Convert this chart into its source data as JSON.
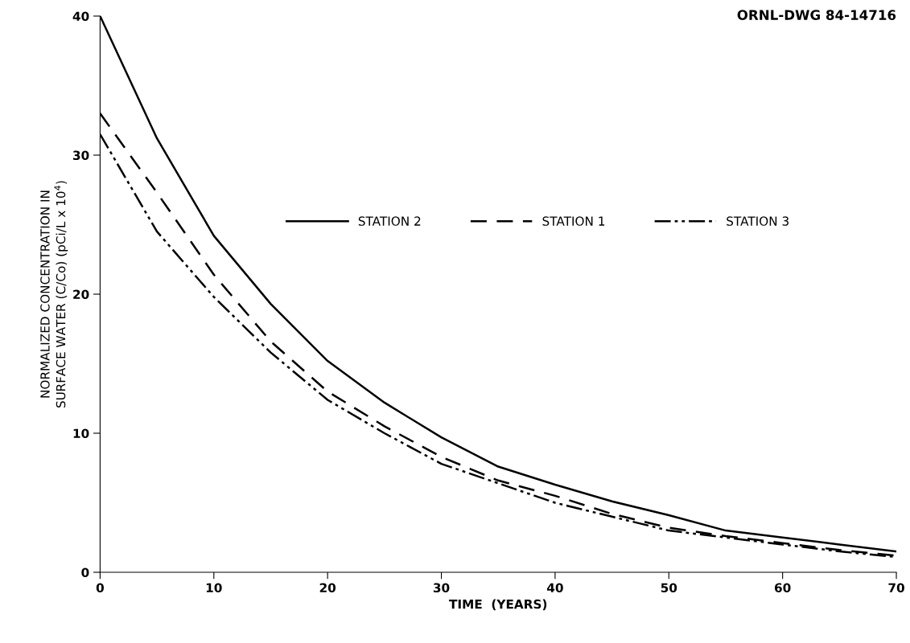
{
  "chart_data": {
    "type": "line",
    "xlabel": "TIME  (YEARS)",
    "ylabel": "NORMALIZED CONCENTRATION IN\nSURFACE WATER (C/Co) (pCi/L x 10$^{4}$)",
    "annotations": [
      "ORNL-DWG 84-14716"
    ],
    "x": [
      0,
      5,
      10,
      15,
      20,
      25,
      30,
      35,
      40,
      45,
      50,
      55,
      60,
      65,
      70
    ],
    "series": [
      {
        "name": "STATION 2",
        "color": "#000000",
        "line_style": "solid",
        "values": [
          40,
          31.2,
          24.2,
          19.3,
          15.2,
          12.2,
          9.7,
          7.6,
          6.3,
          5.1,
          4.1,
          3.0,
          2.5,
          2.0,
          1.5
        ]
      },
      {
        "name": "STATION 1",
        "color": "#000000",
        "line_style": "dashed",
        "values": [
          33,
          27.3,
          21.4,
          16.6,
          13.0,
          10.5,
          8.3,
          6.6,
          5.5,
          4.2,
          3.2,
          2.6,
          2.1,
          1.6,
          1.2
        ]
      },
      {
        "name": "STATION 3",
        "color": "#000000",
        "line_style": "dashdotdot",
        "values": [
          31.5,
          24.5,
          19.8,
          15.8,
          12.4,
          10.0,
          7.8,
          6.4,
          5.0,
          4.0,
          3.0,
          2.5,
          2.0,
          1.5,
          1.1
        ]
      }
    ],
    "xlim": [
      0,
      70
    ],
    "ylim": [
      0,
      40
    ],
    "xticks": [
      0,
      10,
      20,
      30,
      40,
      50,
      60,
      70
    ],
    "yticks": [
      0,
      10,
      20,
      30,
      40
    ],
    "grid": false,
    "legend": "top",
    "marker": "none"
  }
}
